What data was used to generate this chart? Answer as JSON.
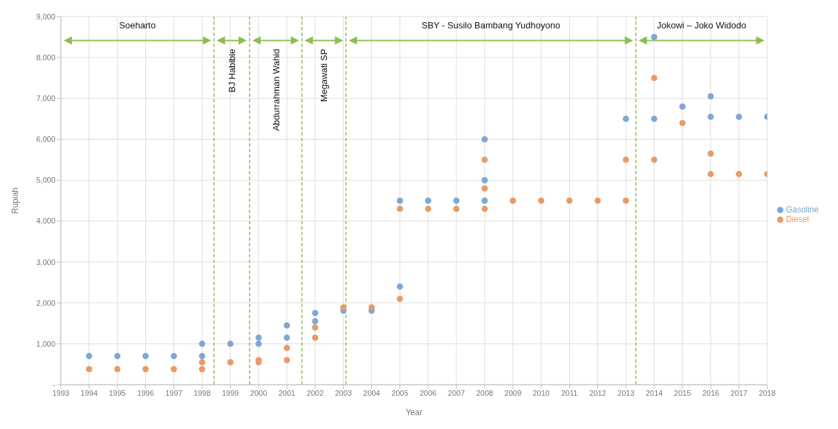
{
  "chart_data": {
    "type": "scatter",
    "xlabel": "Year",
    "ylabel": "Rupiah",
    "xlim": [
      1993,
      2018
    ],
    "xticks": [
      1993,
      1994,
      1995,
      1996,
      1997,
      1998,
      1999,
      2000,
      2001,
      2002,
      2003,
      2004,
      2005,
      2006,
      2007,
      2008,
      2009,
      2010,
      2011,
      2012,
      2013,
      2014,
      2015,
      2016,
      2017,
      2018
    ],
    "ylim": [
      0,
      9000
    ],
    "yticks": [
      {
        "value": 0,
        "label": "-"
      },
      {
        "value": 1000,
        "label": "1,000"
      },
      {
        "value": 2000,
        "label": "2,000"
      },
      {
        "value": 3000,
        "label": "3,000"
      },
      {
        "value": 4000,
        "label": "4,000"
      },
      {
        "value": 5000,
        "label": "5,000"
      },
      {
        "value": 6000,
        "label": "6,000"
      },
      {
        "value": 7000,
        "label": "7,000"
      },
      {
        "value": 8000,
        "label": "8,000"
      },
      {
        "value": 9000,
        "label": "9,000"
      }
    ],
    "grid": true,
    "legend": "right",
    "marker": "circle",
    "series": [
      {
        "name": "Gasoline",
        "color": "#7fa7d4",
        "x": [
          1994,
          1995,
          1996,
          1997,
          1998,
          1998,
          1999,
          2000,
          2000,
          2001,
          2001,
          2002,
          2002,
          2003,
          2004,
          2005,
          2005,
          2006,
          2007,
          2008,
          2008,
          2008,
          2013,
          2014,
          2014,
          2015,
          2016,
          2016,
          2017,
          2018
        ],
        "values": [
          700,
          700,
          700,
          700,
          1000,
          700,
          1000,
          1150,
          1000,
          1450,
          1150,
          1750,
          1550,
          1810,
          1810,
          2400,
          4500,
          4500,
          4500,
          6000,
          5000,
          4500,
          6500,
          8500,
          6500,
          6800,
          7050,
          6550,
          6550,
          6550
        ]
      },
      {
        "name": "Diesel",
        "color": "#e89a68",
        "x": [
          1994,
          1995,
          1996,
          1997,
          1998,
          1998,
          1999,
          2000,
          2000,
          2001,
          2001,
          2002,
          2002,
          2003,
          2004,
          2005,
          2005,
          2006,
          2007,
          2008,
          2008,
          2008,
          2009,
          2010,
          2011,
          2012,
          2013,
          2013,
          2014,
          2014,
          2015,
          2016,
          2016,
          2017,
          2018
        ],
        "values": [
          380,
          380,
          380,
          380,
          550,
          380,
          550,
          600,
          550,
          900,
          600,
          1400,
          1150,
          1890,
          1890,
          2100,
          4300,
          4300,
          4300,
          5500,
          4800,
          4300,
          4500,
          4500,
          4500,
          4500,
          5500,
          4500,
          7500,
          5500,
          6400,
          5650,
          5150,
          5150,
          5150
        ]
      }
    ],
    "ref_lines": [
      {
        "axis": "x",
        "value": 1998.42,
        "color": "#8cbf4f",
        "line_style": "dashed"
      },
      {
        "axis": "x",
        "value": 1999.68,
        "color": "#8cbf4f",
        "line_style": "dashed"
      },
      {
        "axis": "x",
        "value": 2001.53,
        "color": "#8cbf4f",
        "line_style": "dashed"
      },
      {
        "axis": "x",
        "value": 2003.09,
        "color": "#8cbf4f",
        "line_style": "dashed"
      },
      {
        "axis": "x",
        "value": 2013.35,
        "color": "#8cbf4f",
        "line_style": "dashed"
      }
    ],
    "annotations": [
      "Soeharto",
      "BJ Habibie",
      "Abdurrahman Wahid",
      "Megawati SP",
      "SBY - Susilo Bambang Yudhoyono",
      "Jokowi – Joko Widodo"
    ]
  }
}
